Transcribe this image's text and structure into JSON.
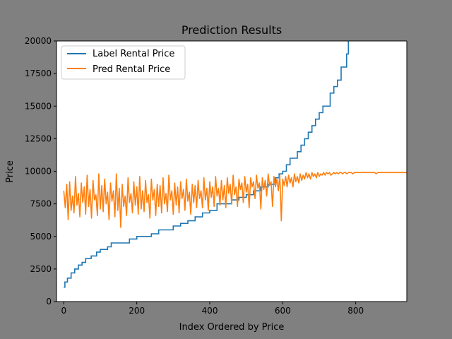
{
  "figure": {
    "background": "#808080"
  },
  "chart_data": {
    "type": "line",
    "title": "Prediction Results",
    "xlabel": "Index Ordered by Price",
    "ylabel": "Price",
    "xlim": [
      -20,
      940
    ],
    "ylim": [
      0,
      20000
    ],
    "xticks": [
      0,
      200,
      400,
      600,
      800
    ],
    "yticks": [
      0,
      2500,
      5000,
      7500,
      10000,
      12500,
      15000,
      17500,
      20000
    ],
    "grid": false,
    "legend_position": "top-left",
    "series": [
      {
        "name": "Label Rental Price",
        "color": "#1f77b4",
        "x": [
          0,
          3,
          10,
          20,
          30,
          40,
          50,
          60,
          75,
          90,
          100,
          120,
          130,
          150,
          170,
          180,
          200,
          220,
          240,
          260,
          280,
          300,
          320,
          340,
          360,
          380,
          400,
          420,
          440,
          460,
          480,
          500,
          520,
          540,
          560,
          580,
          590,
          600,
          610,
          620,
          640,
          650,
          660,
          670,
          680,
          690,
          700,
          710,
          720,
          730,
          740,
          750,
          760,
          770,
          775,
          780
        ],
        "y": [
          1100,
          1500,
          1800,
          2200,
          2500,
          2800,
          3000,
          3300,
          3500,
          3800,
          4000,
          4200,
          4500,
          4500,
          4500,
          4800,
          5000,
          5000,
          5200,
          5500,
          5500,
          5800,
          6000,
          6200,
          6500,
          6800,
          7000,
          7500,
          7500,
          7800,
          8000,
          8200,
          8500,
          8800,
          9000,
          9500,
          9800,
          10000,
          10500,
          11000,
          11500,
          12000,
          12500,
          13000,
          13500,
          14000,
          14500,
          15000,
          15000,
          16000,
          16500,
          17000,
          18000,
          18000,
          19000,
          20000
        ]
      },
      {
        "name": "Pred Rental Price",
        "color": "#ff7f0e",
        "x_start": 0,
        "x_step": 4,
        "y": [
          8500,
          7200,
          9000,
          6300,
          9200,
          7000,
          8100,
          6800,
          9600,
          7400,
          8300,
          6500,
          9100,
          7600,
          8800,
          6700,
          9700,
          7300,
          8600,
          6400,
          9300,
          7800,
          8200,
          6600,
          9800,
          7100,
          8900,
          6900,
          9400,
          7500,
          8400,
          6300,
          9100,
          7700,
          8500,
          6500,
          9800,
          7000,
          8700,
          5700,
          9000,
          7300,
          8100,
          6600,
          9500,
          7600,
          8300,
          6800,
          9200,
          7400,
          8800,
          6700,
          9600,
          7100,
          8500,
          6900,
          9300,
          7600,
          8200,
          6400,
          9400,
          7800,
          8600,
          6600,
          9000,
          7300,
          8900,
          6800,
          9500,
          7500,
          8300,
          6900,
          9700,
          7800,
          8500,
          6700,
          9100,
          7400,
          8800,
          6800,
          9200,
          7900,
          8600,
          7000,
          9400,
          7700,
          8400,
          6700,
          9000,
          7600,
          8900,
          7200,
          9300,
          7900,
          8500,
          7200,
          9500,
          7800,
          8700,
          7000,
          9200,
          8000,
          8800,
          7300,
          9600,
          8100,
          8700,
          7400,
          9300,
          7800,
          8900,
          7200,
          9500,
          8300,
          9000,
          7500,
          9700,
          8200,
          8800,
          7300,
          9400,
          8600,
          9100,
          7600,
          9600,
          8400,
          9000,
          7200,
          9500,
          8800,
          9200,
          7900,
          9700,
          8700,
          9100,
          7100,
          9500,
          8600,
          9300,
          8100,
          9800,
          8900,
          9200,
          7300,
          9600,
          8800,
          9400,
          8500,
          9700,
          6200,
          9400,
          8900,
          9600,
          8800,
          9700,
          9100,
          9500,
          8800,
          9800,
          9200,
          9600,
          9100,
          9800,
          9300,
          9700,
          9400,
          9900,
          9500,
          9800,
          9400,
          9900,
          9600,
          9800,
          9500,
          9900,
          9600,
          9800,
          9700,
          9900,
          9700,
          9900,
          9800,
          9900,
          9700,
          9800,
          9900,
          9800,
          9900,
          9800,
          9900,
          9900,
          9800,
          9900,
          9900,
          9800,
          9900,
          9900,
          9900,
          9800,
          9900,
          9900,
          9900,
          9900,
          9900,
          9900,
          9900,
          9900,
          9900,
          9900,
          9900,
          9900,
          9900,
          9900,
          9900,
          9800,
          9900,
          9900,
          9900,
          9900,
          9900,
          9900,
          9900,
          9900,
          9900,
          9900,
          9900,
          9900,
          9900,
          9900,
          9900,
          9900,
          9900,
          9900,
          9900,
          9900,
          9900,
          9900,
          9900,
          9900
        ]
      }
    ]
  }
}
